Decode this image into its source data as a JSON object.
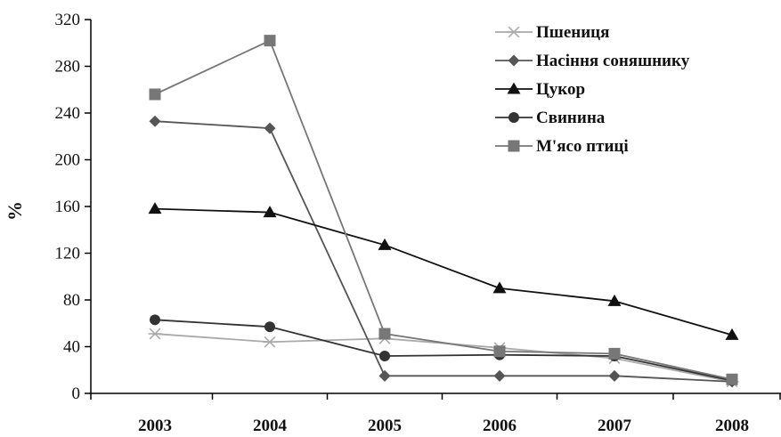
{
  "chart_data": {
    "type": "line",
    "title": "",
    "xlabel": "",
    "ylabel": "%",
    "categories": [
      "2003",
      "2004",
      "2005",
      "2006",
      "2007",
      "2008"
    ],
    "yticks": [
      0,
      40,
      80,
      120,
      160,
      200,
      240,
      280,
      320
    ],
    "ylim": [
      0,
      320
    ],
    "grid": false,
    "legend_position": "top-right",
    "series": [
      {
        "name": "Пшениця",
        "color": "#aaaaaa",
        "marker": "asterisk",
        "values": [
          51,
          44,
          47,
          39,
          30,
          10
        ]
      },
      {
        "name": "Насіння соняшнику",
        "color": "#555555",
        "marker": "diamond",
        "values": [
          233,
          227,
          15,
          15,
          15,
          10
        ]
      },
      {
        "name": "Цукор",
        "color": "#111111",
        "marker": "triangle",
        "values": [
          158,
          155,
          127,
          90,
          79,
          50
        ]
      },
      {
        "name": "Свинина",
        "color": "#333333",
        "marker": "circle",
        "values": [
          63,
          57,
          32,
          33,
          32,
          11
        ]
      },
      {
        "name": "М'ясо птиці",
        "color": "#777777",
        "marker": "square",
        "values": [
          256,
          302,
          51,
          36,
          34,
          12
        ]
      }
    ]
  }
}
